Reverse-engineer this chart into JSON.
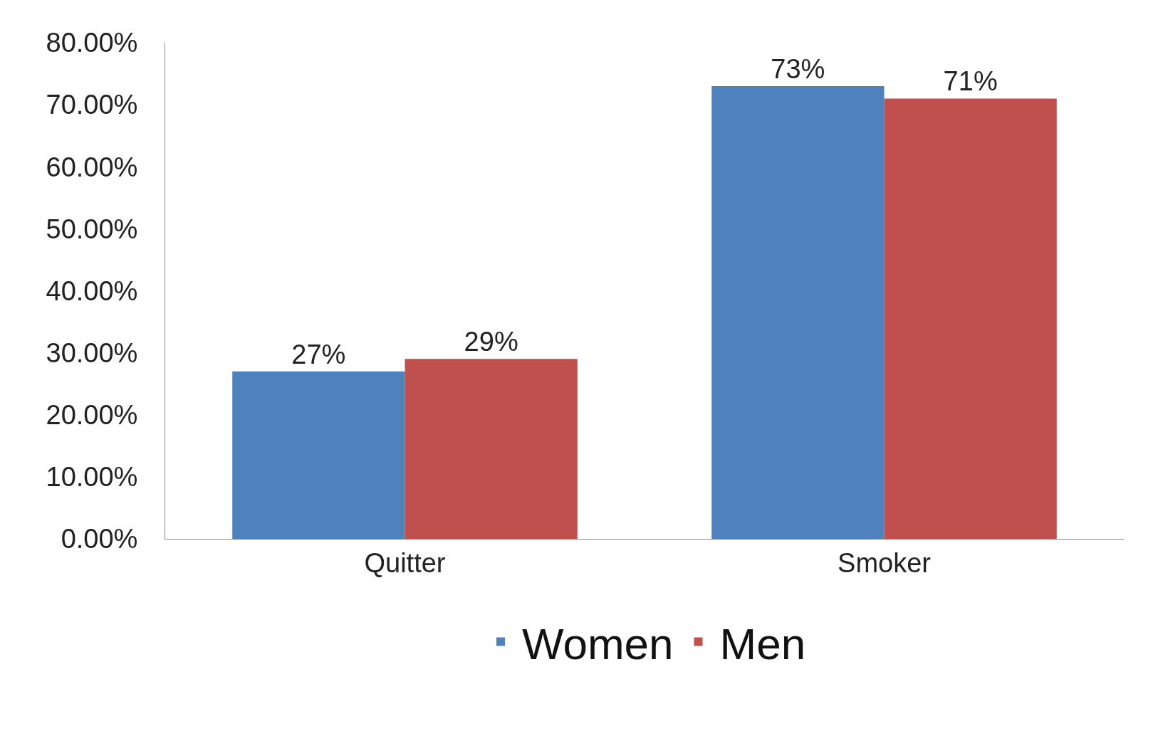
{
  "chart_data": {
    "type": "bar",
    "categories": [
      "Quitter",
      "Smoker"
    ],
    "series": [
      {
        "name": "Women",
        "color": "#4f81bd",
        "values": [
          27,
          73
        ],
        "value_labels": [
          "27%",
          "73%"
        ]
      },
      {
        "name": "Men",
        "color": "#c0504d",
        "values": [
          29,
          71
        ],
        "value_labels": [
          "29%",
          "71%"
        ]
      }
    ],
    "ylim": [
      0,
      80
    ],
    "yticks": [
      {
        "value": 0,
        "label": "0.00%"
      },
      {
        "value": 10,
        "label": "10.00%"
      },
      {
        "value": 20,
        "label": "20.00%"
      },
      {
        "value": 30,
        "label": "30.00%"
      },
      {
        "value": 40,
        "label": "40.00%"
      },
      {
        "value": 50,
        "label": "50.00%"
      },
      {
        "value": 60,
        "label": "60.00%"
      },
      {
        "value": 70,
        "label": "70.00%"
      },
      {
        "value": 80,
        "label": "80.00%"
      }
    ],
    "grid": false,
    "legend": "bottom"
  }
}
